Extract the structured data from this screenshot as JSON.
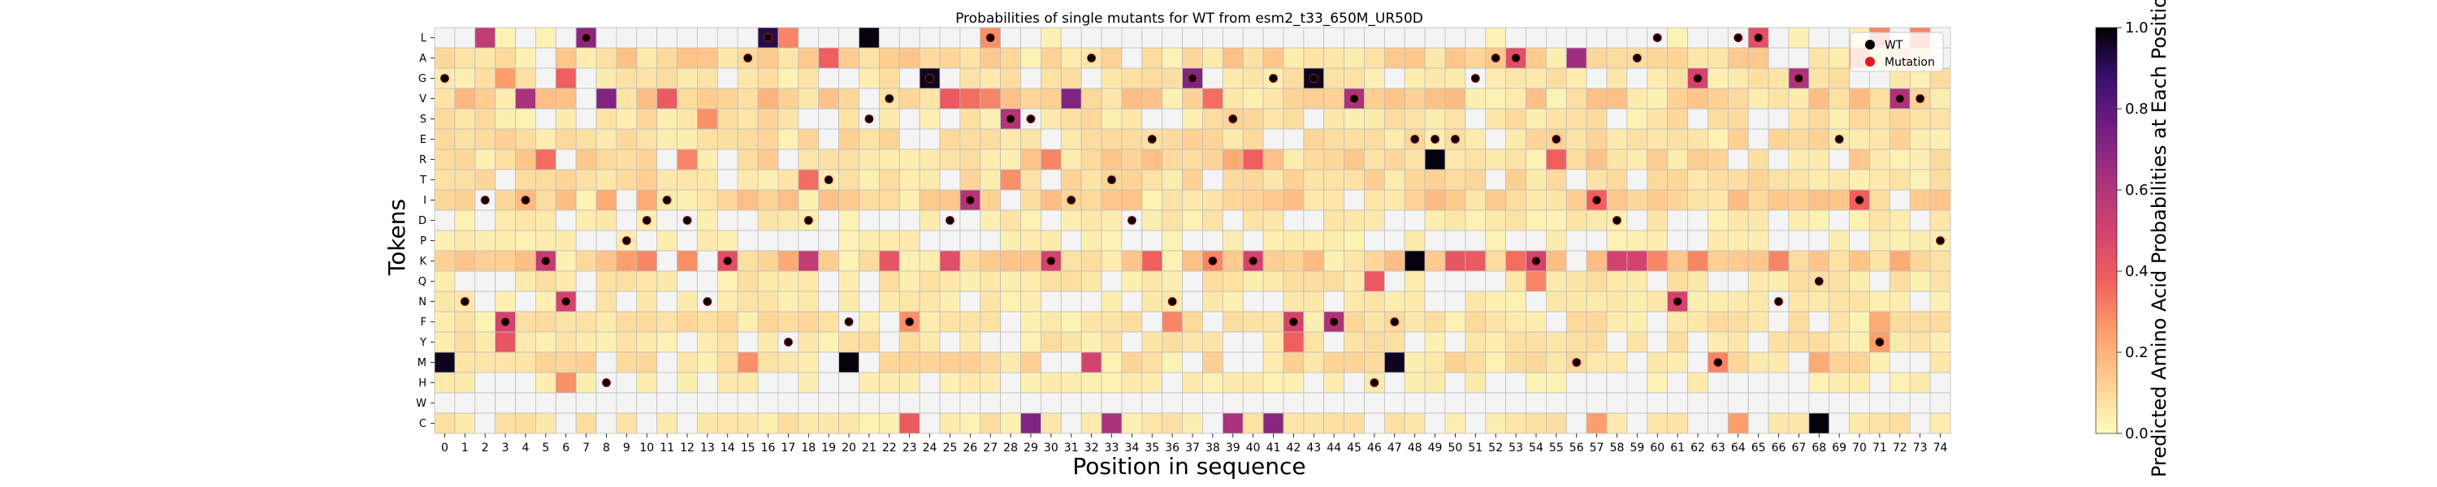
{
  "chart_data": {
    "type": "heatmap",
    "title": "Probabilities of single mutants for WT from esm2_t33_650M_UR50D",
    "xlabel": "Position in sequence",
    "ylabel": "Tokens",
    "colorbar_label": "Predicted Amino Acid Probabilities at Each Position",
    "colorbar_ticks": [
      "0.0",
      "0.2",
      "0.4",
      "0.6",
      "0.8",
      "1.0"
    ],
    "colormap": "magma_r",
    "vmin": 0,
    "vmax": 1,
    "x_labels": [
      "0",
      "1",
      "2",
      "3",
      "4",
      "5",
      "6",
      "7",
      "8",
      "9",
      "10",
      "11",
      "12",
      "13",
      "14",
      "15",
      "16",
      "17",
      "18",
      "19",
      "20",
      "21",
      "22",
      "23",
      "24",
      "25",
      "26",
      "27",
      "28",
      "29",
      "30",
      "31",
      "32",
      "33",
      "34",
      "35",
      "36",
      "37",
      "38",
      "39",
      "40",
      "41",
      "42",
      "43",
      "44",
      "45",
      "46",
      "47",
      "48",
      "49",
      "50",
      "51",
      "52",
      "53",
      "54",
      "55",
      "56",
      "57",
      "58",
      "59",
      "60",
      "61",
      "62",
      "63",
      "64",
      "65",
      "66",
      "67",
      "68",
      "69",
      "70",
      "71",
      "72",
      "73",
      "74"
    ],
    "y_labels": [
      "L",
      "A",
      "G",
      "V",
      "S",
      "E",
      "R",
      "T",
      "I",
      "D",
      "P",
      "K",
      "Q",
      "N",
      "F",
      "Y",
      "M",
      "H",
      "W",
      "C"
    ],
    "legend": {
      "placement": "upper-right",
      "entries": [
        {
          "label": "WT",
          "color": "#000000"
        },
        {
          "label": "Mutation",
          "color": "#e8141c"
        }
      ]
    },
    "wt": [
      "G",
      "N",
      "I",
      "F",
      "I",
      "K",
      "N",
      "L",
      "H",
      "P",
      "D",
      "I",
      "D",
      "N",
      "K",
      "A",
      "L",
      "Y",
      "D",
      "T",
      "F",
      "S",
      "V",
      "F",
      "G",
      "D",
      "I",
      "L",
      "S",
      "S",
      "K",
      "I",
      "A",
      "T",
      "D",
      "E",
      "N",
      "G",
      "K",
      "S",
      "K",
      "G",
      "F",
      "G",
      "F",
      "V",
      "H",
      "F",
      "E",
      "E",
      "E",
      "G",
      "A",
      "A",
      "K",
      "E",
      "M",
      "I",
      "D",
      "A",
      "L",
      "N",
      "G",
      "M",
      "L",
      "L",
      "N",
      "G",
      "Q",
      "E",
      "I",
      "Y",
      "V",
      "V",
      "P"
    ],
    "mutation": [
      "G",
      "N",
      "I",
      "F",
      "I",
      "K",
      "N",
      "L",
      "H",
      "P",
      "D",
      "I",
      "D",
      "N",
      "K",
      "A",
      "L",
      "Y",
      "D",
      "T",
      "F",
      "S",
      "V",
      "F",
      "G",
      "D",
      "I",
      "L",
      "S",
      "S",
      "K",
      "I",
      "A",
      "T",
      "D",
      "E",
      "N",
      "G",
      "K",
      "S",
      "K",
      "G",
      "F",
      "G",
      "F",
      "V",
      "H",
      "F",
      "E",
      "E",
      "E",
      "G",
      "A",
      "A",
      "K",
      "E",
      "M",
      "I",
      "D",
      "A",
      "L",
      "N",
      "G",
      "M",
      "L",
      "L",
      "N",
      "G",
      "Q",
      "E",
      "I",
      "Y",
      "V",
      "V",
      "P"
    ],
    "hot": [
      [
        "M",
        0,
        0.97
      ],
      [
        "L",
        2,
        0.55
      ],
      [
        "G",
        3,
        0.3
      ],
      [
        "F",
        3,
        0.5
      ],
      [
        "Y",
        3,
        0.42
      ],
      [
        "V",
        4,
        0.62
      ],
      [
        "G",
        3,
        0.25
      ],
      [
        "R",
        5,
        0.35
      ],
      [
        "K",
        5,
        0.55
      ],
      [
        "G",
        6,
        0.38
      ],
      [
        "N",
        6,
        0.5
      ],
      [
        "H",
        6,
        0.28
      ],
      [
        "L",
        7,
        0.7
      ],
      [
        "V",
        8,
        0.72
      ],
      [
        "I",
        8,
        0.22
      ],
      [
        "K",
        10,
        0.3
      ],
      [
        "I",
        10,
        0.22
      ],
      [
        "V",
        11,
        0.4
      ],
      [
        "R",
        12,
        0.3
      ],
      [
        "K",
        12,
        0.28
      ],
      [
        "S",
        13,
        0.28
      ],
      [
        "K",
        14,
        0.45
      ],
      [
        "M",
        15,
        0.28
      ],
      [
        "L",
        16,
        0.92
      ],
      [
        "L",
        17,
        0.3
      ],
      [
        "T",
        18,
        0.35
      ],
      [
        "K",
        18,
        0.55
      ],
      [
        "A",
        19,
        0.38
      ],
      [
        "M",
        20,
        0.99
      ],
      [
        "L",
        21,
        0.99
      ],
      [
        "K",
        22,
        0.42
      ],
      [
        "C",
        23,
        0.4
      ],
      [
        "G",
        24,
        0.97
      ],
      [
        "V",
        25,
        0.4
      ],
      [
        "K",
        25,
        0.45
      ],
      [
        "I",
        26,
        0.6
      ],
      [
        "V",
        26,
        0.35
      ],
      [
        "L",
        27,
        0.28
      ],
      [
        "V",
        27,
        0.3
      ],
      [
        "S",
        28,
        0.6
      ],
      [
        "T",
        28,
        0.28
      ],
      [
        "C",
        29,
        0.72
      ],
      [
        "R",
        30,
        0.3
      ],
      [
        "K",
        30,
        0.5
      ],
      [
        "V",
        31,
        0.72
      ],
      [
        "M",
        32,
        0.5
      ],
      [
        "C",
        33,
        0.62
      ],
      [
        "K",
        35,
        0.38
      ],
      [
        "F",
        36,
        0.3
      ],
      [
        "G",
        37,
        0.72
      ],
      [
        "V",
        38,
        0.35
      ],
      [
        "K",
        38,
        0.3
      ],
      [
        "C",
        39,
        0.62
      ],
      [
        "R",
        40,
        0.38
      ],
      [
        "K",
        40,
        0.5
      ],
      [
        "C",
        41,
        0.7
      ],
      [
        "F",
        42,
        0.5
      ],
      [
        "Y",
        42,
        0.38
      ],
      [
        "G",
        43,
        0.97
      ],
      [
        "F",
        44,
        0.62
      ],
      [
        "V",
        45,
        0.62
      ],
      [
        "Q",
        46,
        0.4
      ],
      [
        "M",
        47,
        0.97
      ],
      [
        "K",
        48,
        0.99
      ],
      [
        "R",
        49,
        0.99
      ],
      [
        "K",
        50,
        0.42
      ],
      [
        "K",
        51,
        0.4
      ],
      [
        "A",
        53,
        0.45
      ],
      [
        "K",
        53,
        0.35
      ],
      [
        "K",
        54,
        0.5
      ],
      [
        "Q",
        54,
        0.3
      ],
      [
        "R",
        55,
        0.38
      ],
      [
        "A",
        56,
        0.65
      ],
      [
        "I",
        57,
        0.38
      ],
      [
        "K",
        58,
        0.5
      ],
      [
        "K",
        59,
        0.5
      ],
      [
        "K",
        60,
        0.3
      ],
      [
        "N",
        61,
        0.5
      ],
      [
        "G",
        62,
        0.5
      ],
      [
        "K",
        62,
        0.3
      ],
      [
        "M",
        63,
        0.3
      ],
      [
        "L",
        65,
        0.45
      ],
      [
        "K",
        66,
        0.3
      ],
      [
        "G",
        67,
        0.62
      ],
      [
        "C",
        68,
        0.99
      ],
      [
        "I",
        70,
        0.38
      ],
      [
        "A",
        70,
        0.3
      ],
      [
        "L",
        71,
        0.3
      ],
      [
        "V",
        72,
        0.62
      ],
      [
        "L",
        73,
        0.3
      ],
      [
        "C",
        64,
        0.25
      ],
      [
        "C",
        57,
        0.25
      ],
      [
        "K",
        17,
        0.22
      ],
      [
        "F",
        23,
        0.28
      ],
      [
        "R",
        39,
        0.22
      ],
      [
        "M",
        68,
        0.22
      ],
      [
        "K",
        72,
        0.22
      ],
      [
        "F",
        71,
        0.22
      ],
      [
        "Y",
        71,
        0.25
      ],
      [
        "K",
        9,
        0.25
      ]
    ]
  }
}
